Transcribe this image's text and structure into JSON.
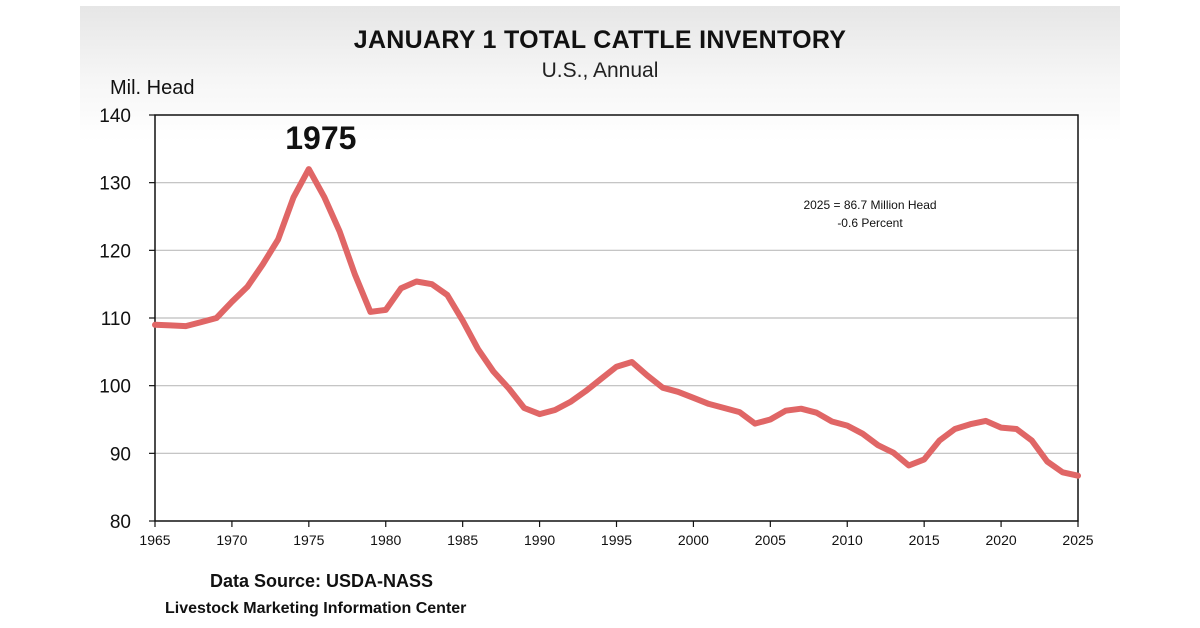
{
  "chart_data": {
    "type": "line",
    "title": "JANUARY 1 TOTAL CATTLE INVENTORY",
    "subtitle": "U.S., Annual",
    "ylabel": "Mil. Head",
    "xlabel": "",
    "xlim": [
      1965,
      2025
    ],
    "ylim": [
      80,
      140
    ],
    "yticks": [
      80,
      90,
      100,
      110,
      120,
      130,
      140
    ],
    "xticks": [
      1965,
      1970,
      1975,
      1980,
      1985,
      1990,
      1995,
      2000,
      2005,
      2010,
      2015,
      2020,
      2025
    ],
    "grid": "horizontal",
    "line_color": "#e06666",
    "series": [
      {
        "x": [
          1965,
          1966,
          1967,
          1968,
          1969,
          1970,
          1971,
          1972,
          1973,
          1974,
          1975,
          1976,
          1977,
          1978,
          1979,
          1980,
          1981,
          1982,
          1983,
          1984,
          1985,
          1986,
          1987,
          1988,
          1989,
          1990,
          1991,
          1992,
          1993,
          1994,
          1995,
          1996,
          1997,
          1998,
          1999,
          2000,
          2001,
          2002,
          2003,
          2004,
          2005,
          2006,
          2007,
          2008,
          2009,
          2010,
          2011,
          2012,
          2013,
          2014,
          2015,
          2016,
          2017,
          2018,
          2019,
          2020,
          2021,
          2022,
          2023,
          2024,
          2025
        ],
        "values": [
          109.0,
          108.9,
          108.8,
          109.4,
          110.0,
          112.4,
          114.6,
          117.9,
          121.6,
          127.8,
          132.0,
          127.9,
          122.8,
          116.4,
          110.9,
          111.2,
          114.4,
          115.4,
          115.0,
          113.4,
          109.6,
          105.4,
          102.1,
          99.6,
          96.7,
          95.8,
          96.4,
          97.6,
          99.2,
          101.0,
          102.8,
          103.5,
          101.5,
          99.7,
          99.1,
          98.2,
          97.3,
          96.7,
          96.1,
          94.4,
          95.0,
          96.3,
          96.6,
          96.0,
          94.7,
          94.1,
          92.9,
          91.2,
          90.1,
          88.2,
          89.1,
          91.9,
          93.6,
          94.3,
          94.8,
          93.8,
          93.6,
          91.9,
          88.8,
          87.2,
          86.7
        ]
      }
    ],
    "annotations": {
      "peak_year": 1975,
      "peak_label": "1975",
      "note_line1": "2025 = 86.7 Million Head",
      "note_line2": "-0.6 Percent"
    }
  },
  "footer": {
    "source": "Data Source:  USDA-NASS",
    "org": "Livestock Marketing Information Center"
  }
}
